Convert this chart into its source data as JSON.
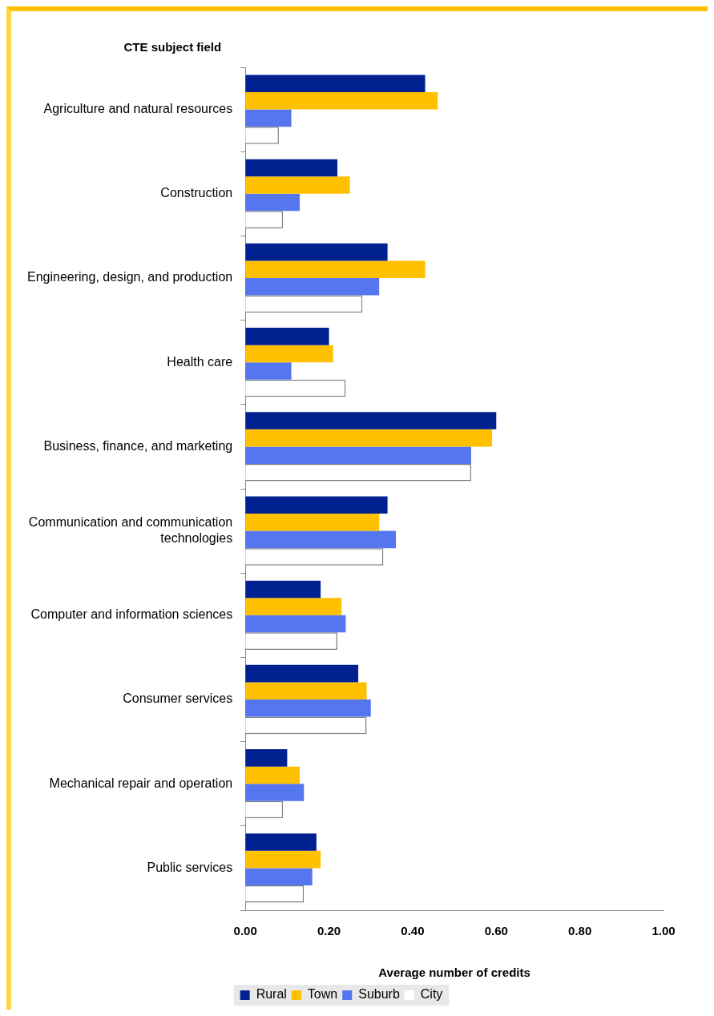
{
  "chart_data": {
    "type": "bar",
    "orientation": "horizontal",
    "ylabel": "CTE subject field",
    "xlabel": "Average number of credits",
    "categories": [
      "Agriculture and natural resources",
      "Construction",
      "Engineering, design, and production",
      "Health care",
      "Business, finance, and marketing",
      "Communication and communication technologies",
      "Computer and information sciences",
      "Consumer services",
      "Mechanical repair and operation",
      "Public services"
    ],
    "series": [
      {
        "name": "Rural",
        "color": "#00218f",
        "values": [
          0.43,
          0.22,
          0.34,
          0.2,
          0.6,
          0.34,
          0.18,
          0.27,
          0.1,
          0.17
        ]
      },
      {
        "name": "Town",
        "color": "#ffc000",
        "values": [
          0.46,
          0.25,
          0.43,
          0.21,
          0.59,
          0.32,
          0.23,
          0.29,
          0.13,
          0.18
        ]
      },
      {
        "name": "Suburb",
        "color": "#5676f0",
        "values": [
          0.11,
          0.13,
          0.32,
          0.11,
          0.54,
          0.36,
          0.24,
          0.3,
          0.14,
          0.16
        ]
      },
      {
        "name": "City",
        "color": "#ffffff",
        "values": [
          0.08,
          0.09,
          0.28,
          0.24,
          0.54,
          0.33,
          0.22,
          0.29,
          0.09,
          0.14
        ]
      }
    ],
    "xlim": [
      0,
      1
    ],
    "xticks": [
      {
        "value": 0,
        "label": "0.00"
      },
      {
        "value": 0.2,
        "label": "0.20"
      },
      {
        "value": 0.4,
        "label": "0.40"
      },
      {
        "value": 0.6,
        "label": "0.60"
      },
      {
        "value": 0.8,
        "label": "0.80"
      },
      {
        "value": 1,
        "label": "1.00"
      }
    ],
    "grid": false,
    "legend": "bottom"
  }
}
